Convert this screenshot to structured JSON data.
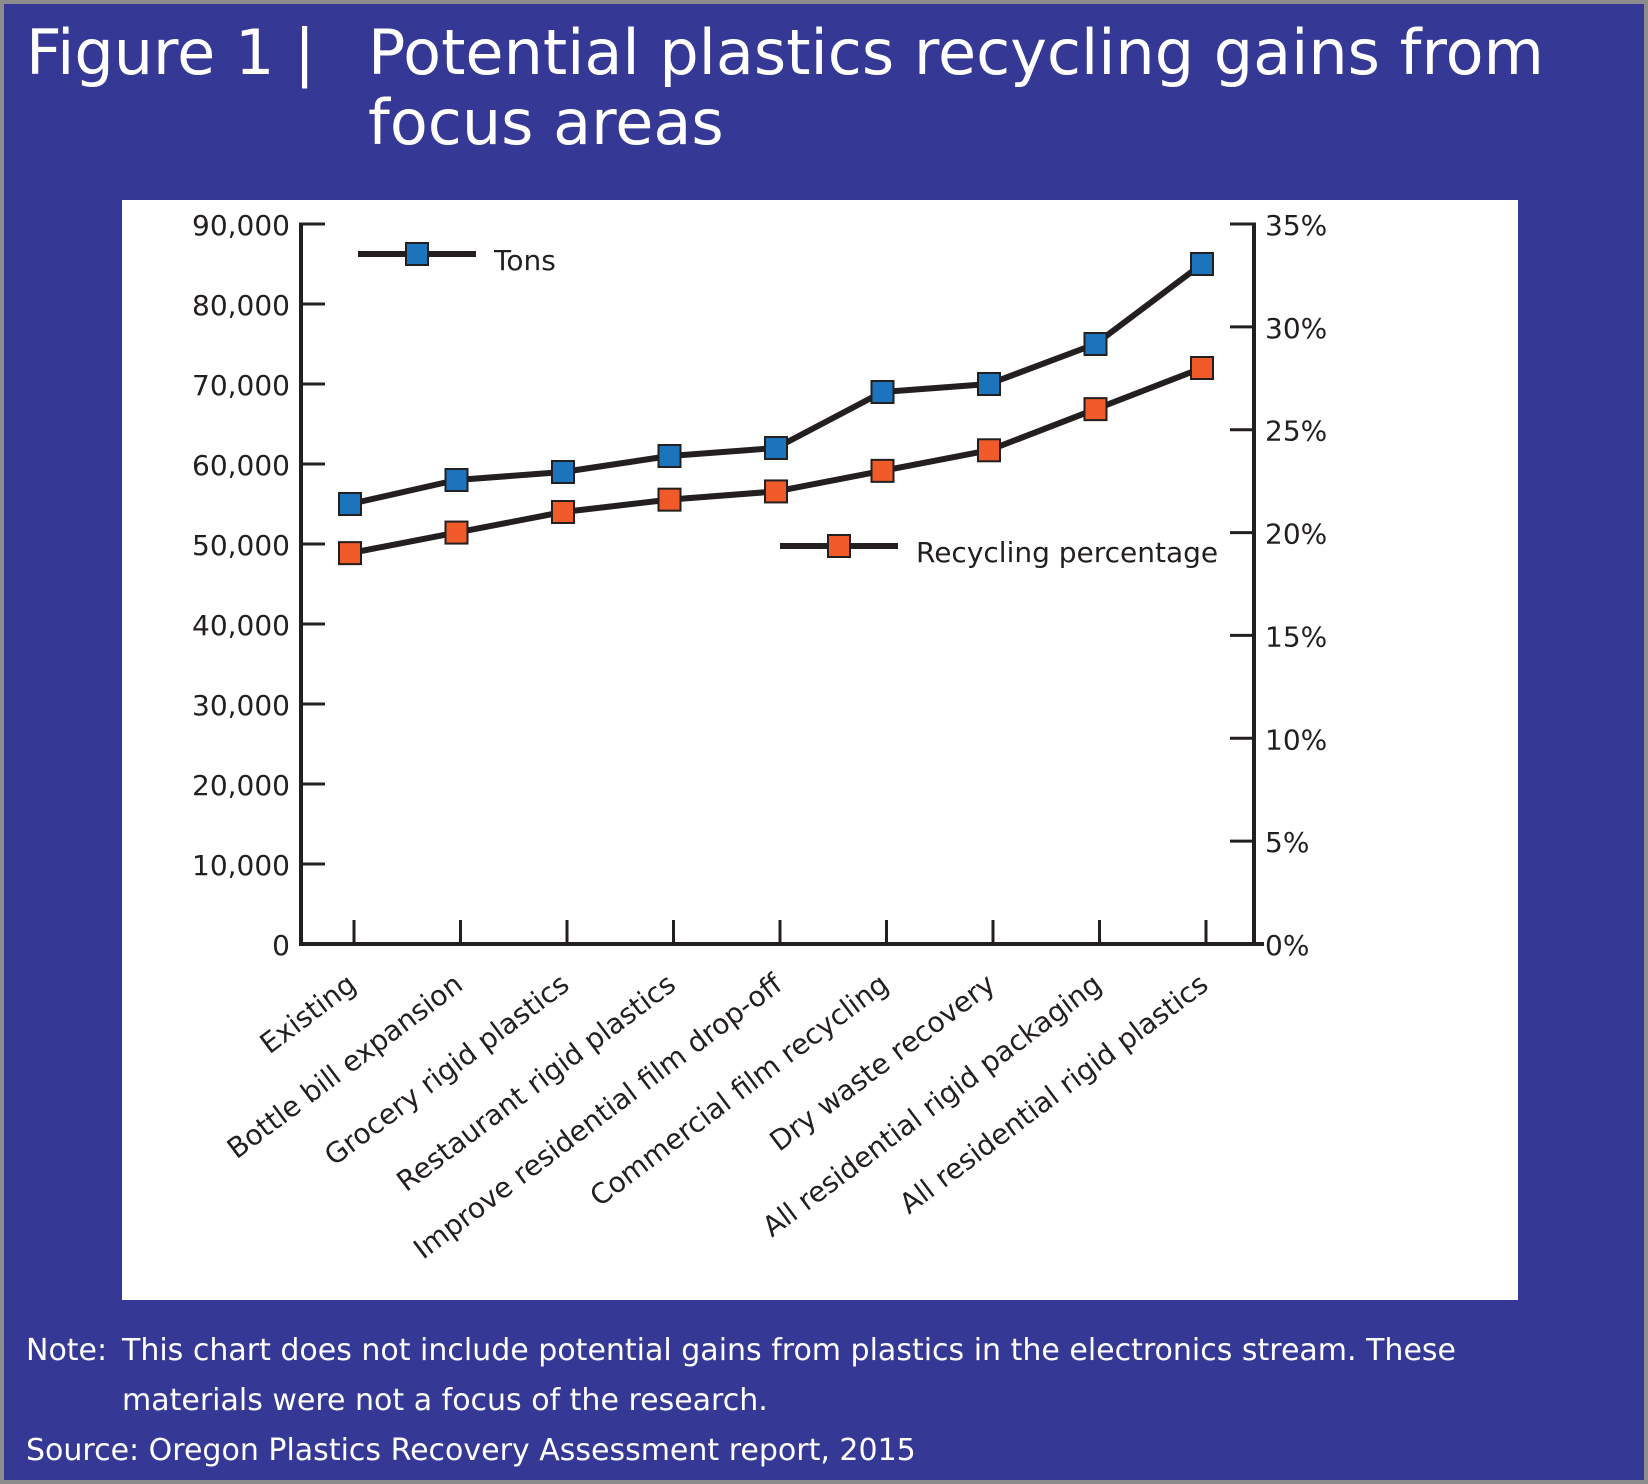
{
  "title": {
    "prefix": "Figure 1  |",
    "text": "Potential plastics recycling gains from focus areas"
  },
  "chart_data": {
    "type": "line",
    "categories": [
      "Existing",
      "Bottle bill expansion",
      "Grocery rigid plastics",
      "Restaurant rigid plastics",
      "Improve residential film drop-off",
      "Commercial film recycling",
      "Dry waste recovery",
      "All residential rigid packaging",
      "All residential rigid plastics"
    ],
    "series": [
      {
        "name": "Tons",
        "axis": "left",
        "color": "#1c75bc",
        "values": [
          55000,
          58000,
          59000,
          61000,
          62000,
          69000,
          70000,
          75000,
          85000
        ]
      },
      {
        "name": "Recycling percentage",
        "axis": "right",
        "color": "#f15a29",
        "values": [
          19.0,
          20.0,
          21.0,
          21.6,
          22.0,
          23.0,
          24.0,
          26.0,
          28.0
        ]
      }
    ],
    "y_left": {
      "ylim": [
        0,
        90000
      ],
      "ticks": [
        0,
        10000,
        20000,
        30000,
        40000,
        50000,
        60000,
        70000,
        80000,
        90000
      ],
      "tick_labels": [
        "0",
        "10,000",
        "20,000",
        "30,000",
        "40,000",
        "50,000",
        "60,000",
        "70,000",
        "80,000",
        "90,000"
      ]
    },
    "y_right": {
      "ylim": [
        0,
        35
      ],
      "ticks": [
        0,
        5,
        10,
        15,
        20,
        25,
        30,
        35
      ],
      "tick_labels": [
        "0%",
        "5%",
        "10%",
        "15%",
        "20%",
        "25%",
        "30%",
        "35%"
      ]
    },
    "line_color": "#231f20",
    "grid": false,
    "legend": [
      "top-left",
      "middle-right"
    ]
  },
  "footnote": {
    "note_label": "Note:",
    "note_text": "This chart does not include potential gains from plastics in the electronics stream.  These materials were not a focus of the research.",
    "source": "Source:  Oregon Plastics Recovery Assessment report, 2015"
  }
}
